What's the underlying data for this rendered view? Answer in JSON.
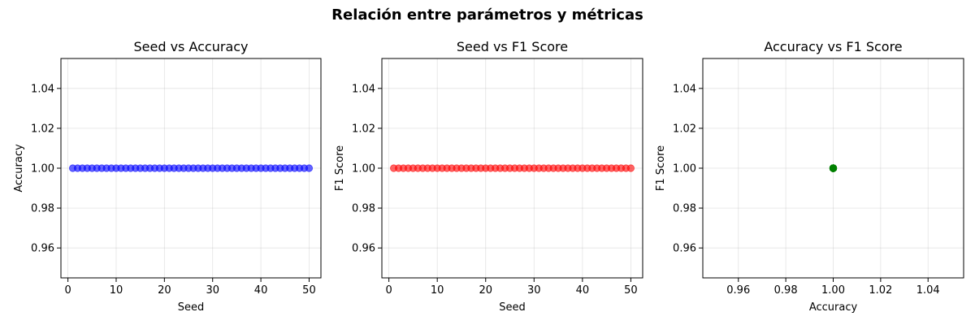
{
  "figure": {
    "title": "Relación entre parámetros y métricas"
  },
  "chart_data": [
    {
      "type": "scatter",
      "title": "Seed vs Accuracy",
      "xlabel": "Seed",
      "ylabel": "Accuracy",
      "xlim": [
        -1.45,
        52.45
      ],
      "ylim": [
        0.945,
        1.055
      ],
      "xticks": [
        0,
        10,
        20,
        30,
        40,
        50
      ],
      "yticks": [
        0.96,
        0.98,
        1.0,
        1.02,
        1.04
      ],
      "xtick_labels": [
        "0",
        "10",
        "20",
        "30",
        "40",
        "50"
      ],
      "ytick_labels": [
        "0.96",
        "0.98",
        "1.00",
        "1.02",
        "1.04"
      ],
      "grid": true,
      "color": "#0000ff",
      "series": [
        {
          "x": [
            1,
            2,
            3,
            4,
            5,
            6,
            7,
            8,
            9,
            10,
            11,
            12,
            13,
            14,
            15,
            16,
            17,
            18,
            19,
            20,
            21,
            22,
            23,
            24,
            25,
            26,
            27,
            28,
            29,
            30,
            31,
            32,
            33,
            34,
            35,
            36,
            37,
            38,
            39,
            40,
            41,
            42,
            43,
            44,
            45,
            46,
            47,
            48,
            49,
            50
          ],
          "y": [
            1,
            1,
            1,
            1,
            1,
            1,
            1,
            1,
            1,
            1,
            1,
            1,
            1,
            1,
            1,
            1,
            1,
            1,
            1,
            1,
            1,
            1,
            1,
            1,
            1,
            1,
            1,
            1,
            1,
            1,
            1,
            1,
            1,
            1,
            1,
            1,
            1,
            1,
            1,
            1,
            1,
            1,
            1,
            1,
            1,
            1,
            1,
            1,
            1,
            1
          ]
        }
      ]
    },
    {
      "type": "scatter",
      "title": "Seed vs F1 Score",
      "xlabel": "Seed",
      "ylabel": "F1 Score",
      "xlim": [
        -1.45,
        52.45
      ],
      "ylim": [
        0.945,
        1.055
      ],
      "xticks": [
        0,
        10,
        20,
        30,
        40,
        50
      ],
      "yticks": [
        0.96,
        0.98,
        1.0,
        1.02,
        1.04
      ],
      "xtick_labels": [
        "0",
        "10",
        "20",
        "30",
        "40",
        "50"
      ],
      "ytick_labels": [
        "0.96",
        "0.98",
        "1.00",
        "1.02",
        "1.04"
      ],
      "grid": true,
      "color": "#ff0000",
      "series": [
        {
          "x": [
            1,
            2,
            3,
            4,
            5,
            6,
            7,
            8,
            9,
            10,
            11,
            12,
            13,
            14,
            15,
            16,
            17,
            18,
            19,
            20,
            21,
            22,
            23,
            24,
            25,
            26,
            27,
            28,
            29,
            30,
            31,
            32,
            33,
            34,
            35,
            36,
            37,
            38,
            39,
            40,
            41,
            42,
            43,
            44,
            45,
            46,
            47,
            48,
            49,
            50
          ],
          "y": [
            1,
            1,
            1,
            1,
            1,
            1,
            1,
            1,
            1,
            1,
            1,
            1,
            1,
            1,
            1,
            1,
            1,
            1,
            1,
            1,
            1,
            1,
            1,
            1,
            1,
            1,
            1,
            1,
            1,
            1,
            1,
            1,
            1,
            1,
            1,
            1,
            1,
            1,
            1,
            1,
            1,
            1,
            1,
            1,
            1,
            1,
            1,
            1,
            1,
            1
          ]
        }
      ]
    },
    {
      "type": "scatter",
      "title": "Accuracy vs F1 Score",
      "xlabel": "Accuracy",
      "ylabel": "F1 Score",
      "xlim": [
        0.945,
        1.055
      ],
      "ylim": [
        0.945,
        1.055
      ],
      "xticks": [
        0.96,
        0.98,
        1.0,
        1.02,
        1.04
      ],
      "yticks": [
        0.96,
        0.98,
        1.0,
        1.02,
        1.04
      ],
      "xtick_labels": [
        "0.96",
        "0.98",
        "1.00",
        "1.02",
        "1.04"
      ],
      "ytick_labels": [
        "0.96",
        "0.98",
        "1.00",
        "1.02",
        "1.04"
      ],
      "grid": true,
      "color": "#008000",
      "series": [
        {
          "x": [
            1,
            1,
            1,
            1,
            1,
            1,
            1,
            1,
            1,
            1,
            1,
            1,
            1,
            1,
            1,
            1,
            1,
            1,
            1,
            1,
            1,
            1,
            1,
            1,
            1,
            1,
            1,
            1,
            1,
            1,
            1,
            1,
            1,
            1,
            1,
            1,
            1,
            1,
            1,
            1,
            1,
            1,
            1,
            1,
            1,
            1,
            1,
            1,
            1,
            1
          ],
          "y": [
            1,
            1,
            1,
            1,
            1,
            1,
            1,
            1,
            1,
            1,
            1,
            1,
            1,
            1,
            1,
            1,
            1,
            1,
            1,
            1,
            1,
            1,
            1,
            1,
            1,
            1,
            1,
            1,
            1,
            1,
            1,
            1,
            1,
            1,
            1,
            1,
            1,
            1,
            1,
            1,
            1,
            1,
            1,
            1,
            1,
            1,
            1,
            1,
            1,
            1
          ]
        }
      ]
    }
  ]
}
